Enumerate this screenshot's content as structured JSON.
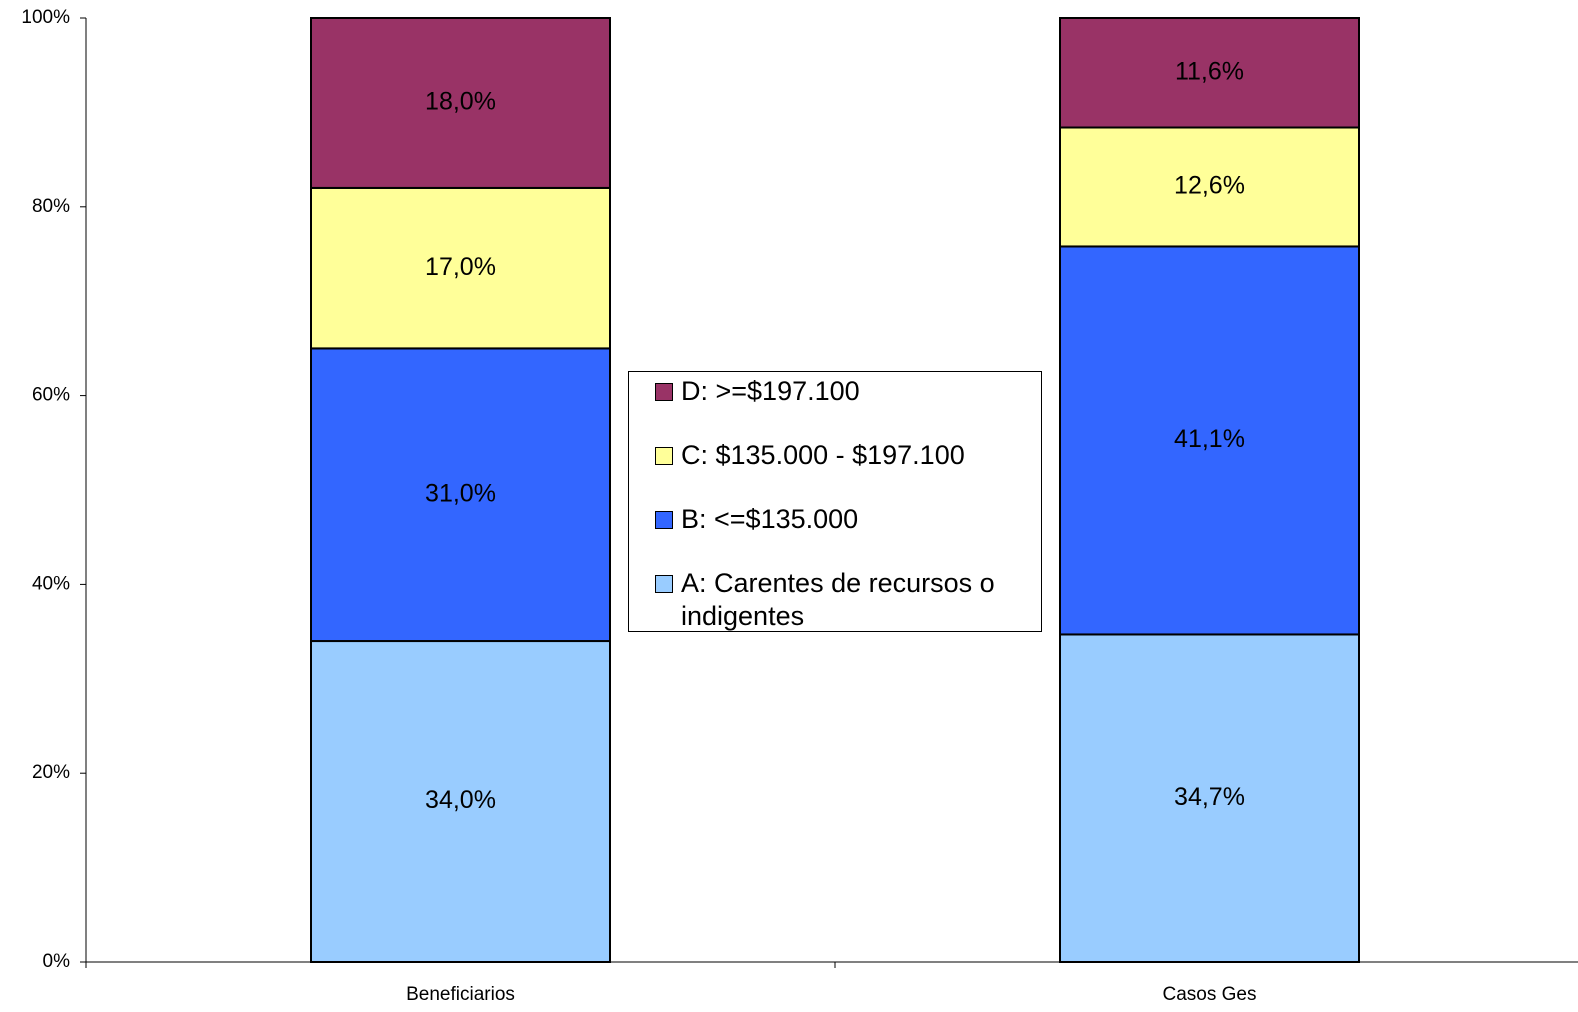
{
  "chart_data": {
    "type": "stacked_bar",
    "categories": [
      "Beneficiarios",
      "Casos Ges"
    ],
    "series": [
      {
        "name": "A: Carentes de recursos o indigentes",
        "color": "#99ccff",
        "values": [
          34.0,
          34.7
        ],
        "value_labels": [
          "34,0%",
          "34,7%"
        ]
      },
      {
        "name": "B: <=$135.000",
        "color": "#3366ff",
        "values": [
          31.0,
          41.1
        ],
        "value_labels": [
          "31,0%",
          "41,1%"
        ]
      },
      {
        "name": "C: $135.000 - $197.100",
        "color": "#ffff99",
        "values": [
          17.0,
          12.6
        ],
        "value_labels": [
          "17,0%",
          "12,6%"
        ]
      },
      {
        "name": "D: >=$197.100",
        "color": "#993366",
        "values": [
          18.0,
          11.6
        ],
        "value_labels": [
          "18,0%",
          "11,6%"
        ]
      }
    ],
    "ylim": [
      0,
      100
    ],
    "yticks": [
      {
        "value": 0,
        "label": "0%"
      },
      {
        "value": 20,
        "label": "20%"
      },
      {
        "value": 40,
        "label": "40%"
      },
      {
        "value": 60,
        "label": "60%"
      },
      {
        "value": 80,
        "label": "80%"
      },
      {
        "value": 100,
        "label": "100%"
      }
    ],
    "legend_position": "center"
  }
}
